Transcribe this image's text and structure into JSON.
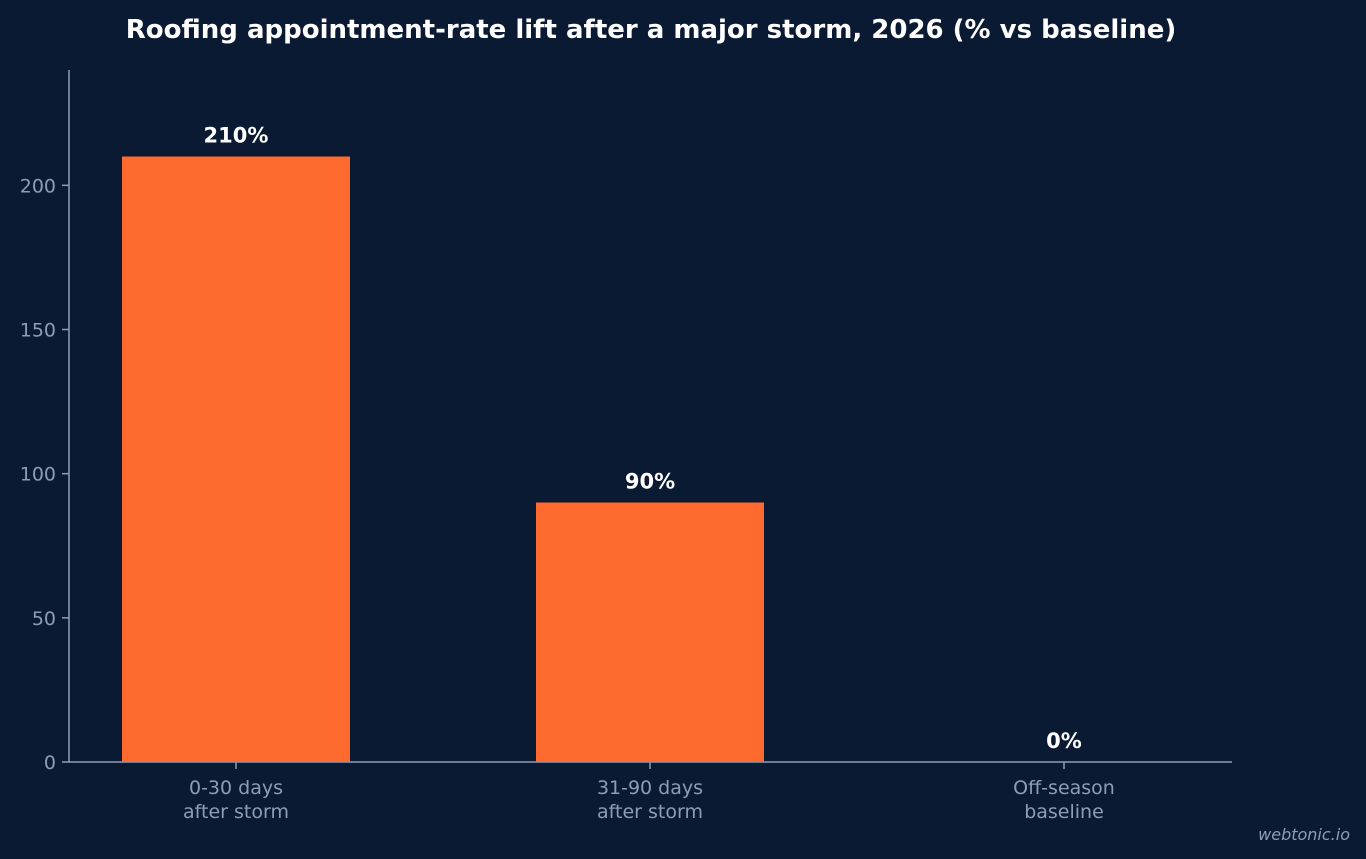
{
  "chart_data": {
    "type": "bar",
    "title": "Roofing appointment-rate lift after a major storm, 2026 (% vs baseline)",
    "categories": [
      [
        "0-30 days",
        "after storm"
      ],
      [
        "31-90 days",
        "after storm"
      ],
      [
        "Off-season",
        "baseline"
      ]
    ],
    "values": [
      210,
      90,
      0
    ],
    "value_labels": [
      "210%",
      "90%",
      "0%"
    ],
    "yticks": [
      0,
      50,
      100,
      150,
      200
    ],
    "ylim": [
      0,
      240
    ],
    "xlabel": "",
    "ylabel": "",
    "grid": false,
    "bar_color": "#ff6b2f"
  },
  "watermark": "webtonic.io"
}
